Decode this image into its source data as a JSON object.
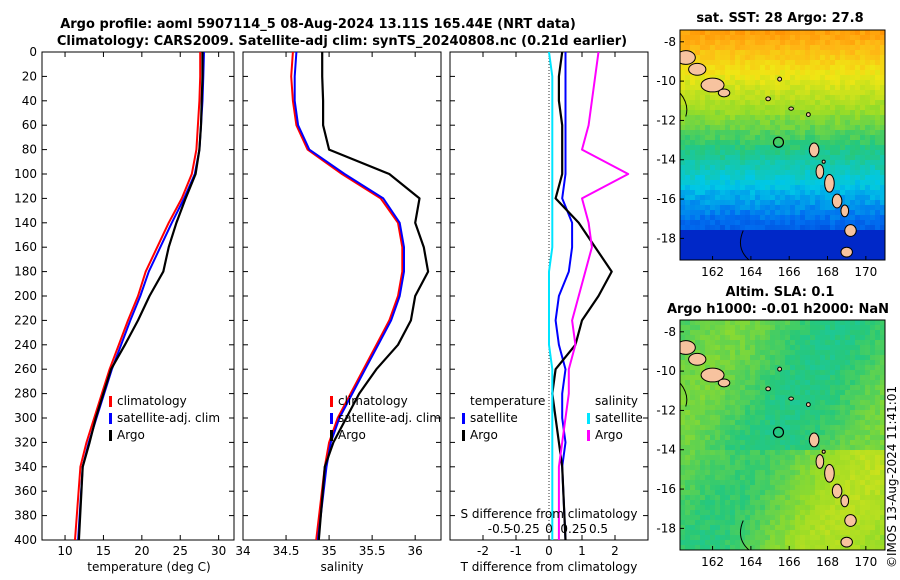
{
  "title_line1": "Argo profile: aoml 5907114_5 08-Aug-2024 13.11S 165.44E (NRT data)",
  "title_line2": "Climatology: CARS2009. Satellite-adj clim: synTS_20240808.nc (0.21d earlier)",
  "watermark": "©IMOS 13-Aug-2024 11:41:01",
  "colors": {
    "climatology": "#ff0000",
    "satellite": "#0000ff",
    "argo": "#000000",
    "cyan": "#00e5ff",
    "magenta": "#ff00ff"
  },
  "chart_data": [
    {
      "type": "line",
      "name": "temperature-panel",
      "xlabel": "temperature (deg C)",
      "xlim": [
        7,
        32
      ],
      "ylim": [
        400,
        0
      ],
      "xticks": [
        10,
        15,
        20,
        25,
        30
      ],
      "yticks": [
        0,
        20,
        40,
        60,
        80,
        100,
        120,
        140,
        160,
        180,
        200,
        220,
        240,
        260,
        280,
        300,
        320,
        340,
        360,
        380,
        400
      ],
      "legend": [
        "climatology",
        "satellite-adj. clim",
        "Argo"
      ],
      "series": [
        {
          "name": "climatology",
          "color": "#ff0000",
          "x": [
            27.6,
            27.6,
            27.5,
            27.3,
            27.1,
            26.5,
            25.2,
            23.5,
            22.0,
            20.5,
            19.5,
            18.2,
            17.0,
            15.8,
            14.8,
            13.8,
            12.8,
            12.0,
            11.3
          ],
          "y": [
            0,
            20,
            40,
            60,
            80,
            100,
            120,
            140,
            160,
            180,
            200,
            220,
            240,
            260,
            280,
            300,
            320,
            340,
            400
          ]
        },
        {
          "name": "satellite-adj. clim",
          "color": "#0000ff",
          "x": [
            28.1,
            28.0,
            27.9,
            27.7,
            27.5,
            26.9,
            25.5,
            23.9,
            22.4,
            20.9,
            19.8,
            18.5,
            17.3,
            16.1,
            15.1,
            14.1,
            13.1,
            12.3,
            11.7
          ],
          "y": [
            0,
            20,
            40,
            60,
            80,
            100,
            120,
            140,
            160,
            180,
            200,
            220,
            240,
            260,
            280,
            300,
            320,
            340,
            400
          ]
        },
        {
          "name": "Argo",
          "color": "#000000",
          "x": [
            27.9,
            27.9,
            27.8,
            27.7,
            27.5,
            27.0,
            25.7,
            24.5,
            23.5,
            22.8,
            21.0,
            19.5,
            17.8,
            16.0,
            15.0,
            14.0,
            13.2,
            12.3,
            11.8
          ],
          "y": [
            0,
            20,
            40,
            60,
            80,
            100,
            120,
            140,
            160,
            180,
            200,
            220,
            240,
            260,
            280,
            300,
            320,
            340,
            400
          ]
        }
      ]
    },
    {
      "type": "line",
      "name": "salinity-panel",
      "xlabel": "salinity",
      "xlim": [
        34,
        36.3
      ],
      "ylim": [
        400,
        0
      ],
      "xticks": [
        34,
        34.5,
        35,
        35.5,
        36
      ],
      "legend": [
        "climatology",
        "satellite-adj. clim",
        "Argo"
      ],
      "series": [
        {
          "name": "climatology",
          "color": "#ff0000",
          "x": [
            34.58,
            34.56,
            34.58,
            34.62,
            34.75,
            35.15,
            35.6,
            35.8,
            35.85,
            35.85,
            35.8,
            35.7,
            35.55,
            35.4,
            35.25,
            35.1,
            35.0,
            34.95,
            34.85
          ],
          "y": [
            0,
            20,
            40,
            60,
            80,
            100,
            120,
            140,
            160,
            180,
            200,
            220,
            240,
            260,
            280,
            300,
            320,
            340,
            400
          ]
        },
        {
          "name": "satellite-adj. clim",
          "color": "#0000ff",
          "x": [
            34.62,
            34.6,
            34.6,
            34.64,
            34.77,
            35.18,
            35.63,
            35.82,
            35.87,
            35.87,
            35.82,
            35.72,
            35.57,
            35.42,
            35.27,
            35.12,
            35.02,
            34.97,
            34.87
          ],
          "y": [
            0,
            20,
            40,
            60,
            80,
            100,
            120,
            140,
            160,
            180,
            200,
            220,
            240,
            260,
            280,
            300,
            320,
            340,
            400
          ]
        },
        {
          "name": "Argo",
          "color": "#000000",
          "x": [
            34.92,
            34.92,
            34.93,
            34.93,
            35.0,
            35.7,
            36.05,
            36.0,
            36.1,
            36.15,
            36.0,
            35.95,
            35.8,
            35.55,
            35.35,
            35.2,
            35.05,
            34.95,
            34.88
          ],
          "y": [
            0,
            20,
            40,
            60,
            80,
            100,
            120,
            140,
            160,
            180,
            200,
            220,
            240,
            260,
            280,
            300,
            320,
            340,
            400
          ]
        }
      ]
    },
    {
      "type": "line",
      "name": "difference-panel",
      "xlabel": "T difference from climatology",
      "xlabel_top": "S difference from climatology",
      "xlim": [
        -3,
        3
      ],
      "ylim": [
        400,
        0
      ],
      "xticks": [
        -2,
        -1,
        0,
        1,
        2
      ],
      "xticks_s": [
        "-0.5",
        "-0.25",
        "0",
        "0.25",
        "0.5"
      ],
      "legend_temperature_title": "temperature",
      "legend_salinity_title": "salinity",
      "legend": [
        "satellite",
        "Argo",
        "satellite",
        "Argo"
      ],
      "series": [
        {
          "name": "T satellite",
          "color": "#0000ff",
          "x": [
            0.5,
            0.5,
            0.5,
            0.5,
            0.5,
            0.5,
            0.4,
            0.7,
            0.7,
            0.6,
            0.3,
            0.2,
            0.3,
            0.5,
            0.4,
            0.4,
            0.5,
            0.4,
            0.5
          ],
          "y": [
            0,
            20,
            40,
            60,
            80,
            100,
            120,
            140,
            160,
            180,
            200,
            220,
            240,
            260,
            280,
            300,
            320,
            340,
            400
          ]
        },
        {
          "name": "T Argo",
          "color": "#000000",
          "x": [
            0.4,
            0.3,
            0.3,
            0.4,
            0.4,
            0.4,
            0.2,
            0.9,
            1.4,
            1.9,
            1.5,
            1.0,
            0.8,
            0.2,
            0.1,
            0.2,
            0.3,
            0.4,
            0.5
          ],
          "y": [
            0,
            20,
            40,
            60,
            80,
            100,
            120,
            140,
            160,
            180,
            200,
            220,
            240,
            260,
            280,
            300,
            320,
            340,
            400
          ]
        },
        {
          "name": "S satellite",
          "color": "#00e5ff",
          "x": [
            0.0,
            0.1,
            0.1,
            0.1,
            0.1,
            0.1,
            0.1,
            0.1,
            0.1,
            0.0,
            0.0,
            0.0,
            0.0,
            0.1,
            0.1,
            0.1,
            0.1,
            0.1,
            0.1
          ],
          "y": [
            0,
            20,
            40,
            60,
            80,
            100,
            120,
            140,
            160,
            180,
            200,
            220,
            240,
            260,
            280,
            300,
            320,
            340,
            400
          ]
        },
        {
          "name": "S Argo",
          "color": "#ff00ff",
          "x": [
            1.5,
            1.4,
            1.3,
            1.2,
            1.0,
            2.4,
            1.0,
            1.2,
            1.3,
            1.1,
            0.9,
            0.7,
            0.8,
            0.6,
            0.6,
            0.5,
            0.4,
            0.3,
            0.3
          ],
          "y": [
            0,
            20,
            40,
            60,
            80,
            100,
            120,
            140,
            160,
            180,
            200,
            220,
            240,
            260,
            280,
            300,
            320,
            340,
            400
          ]
        }
      ]
    },
    {
      "type": "heatmap",
      "name": "sst-map",
      "title": "sat. SST: 28 Argo: 27.8",
      "xlim": [
        160.3,
        171
      ],
      "ylim": [
        -19.1,
        -7.4
      ],
      "xticks": [
        162,
        164,
        166,
        168,
        170
      ],
      "yticks": [
        -8,
        -10,
        -12,
        -14,
        -16,
        -18
      ],
      "marker": {
        "lon": 165.44,
        "lat": -13.11
      }
    },
    {
      "type": "heatmap",
      "name": "sla-map",
      "title": "Altim. SLA: 0.1",
      "subtitle": "Argo h1000: -0.01 h2000: NaN",
      "xlim": [
        160.3,
        171
      ],
      "ylim": [
        -19.1,
        -7.4
      ],
      "xticks": [
        162,
        164,
        166,
        168,
        170
      ],
      "yticks": [
        -8,
        -10,
        -12,
        -14,
        -16,
        -18
      ],
      "marker": {
        "lon": 165.44,
        "lat": -13.11
      }
    }
  ]
}
